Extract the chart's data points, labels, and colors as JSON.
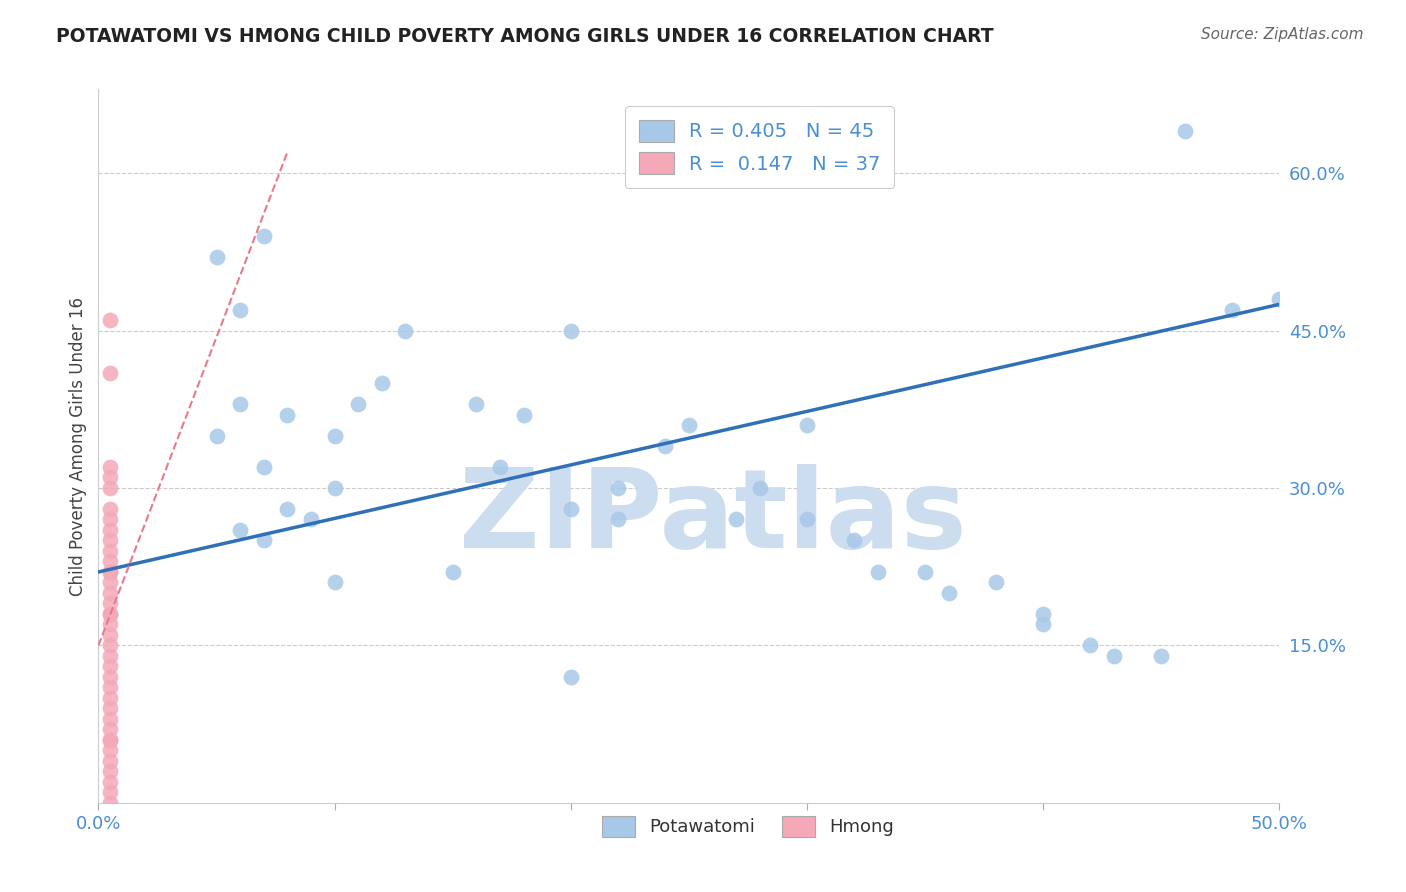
{
  "title": "POTAWATOMI VS HMONG CHILD POVERTY AMONG GIRLS UNDER 16 CORRELATION CHART",
  "source": "Source: ZipAtlas.com",
  "ylabel": "Child Poverty Among Girls Under 16",
  "xlim": [
    0.0,
    0.5
  ],
  "ylim": [
    0.0,
    0.68
  ],
  "xticks": [
    0.0,
    0.1,
    0.2,
    0.3,
    0.4,
    0.5
  ],
  "xticklabels": [
    "0.0%",
    "",
    "",
    "",
    "",
    "50.0%"
  ],
  "right_yticks": [
    0.15,
    0.3,
    0.45,
    0.6
  ],
  "right_yticklabels": [
    "15.0%",
    "30.0%",
    "45.0%",
    "60.0%"
  ],
  "grid_yticks": [
    0.15,
    0.3,
    0.45,
    0.6
  ],
  "R_blue": 0.405,
  "N_blue": 45,
  "R_pink": 0.147,
  "N_pink": 37,
  "blue_color": "#a8c8e8",
  "pink_color": "#f4a8b8",
  "trendline_blue_color": "#3070b8",
  "trendline_pink_color": "#e87a8a",
  "watermark": "ZIPatlas",
  "watermark_color": "#ccddf0",
  "blue_trendline_x0": 0.0,
  "blue_trendline_y0": 0.22,
  "blue_trendline_x1": 0.5,
  "blue_trendline_y1": 0.475,
  "pink_trendline_x0": 0.0,
  "pink_trendline_y0": 0.15,
  "pink_trendline_x1": 0.08,
  "pink_trendline_y1": 0.62,
  "potawatomi_x": [
    0.05,
    0.06,
    0.07,
    0.06,
    0.05,
    0.07,
    0.08,
    0.06,
    0.07,
    0.08,
    0.09,
    0.1,
    0.11,
    0.12,
    0.1,
    0.13,
    0.15,
    0.16,
    0.17,
    0.18,
    0.2,
    0.2,
    0.22,
    0.22,
    0.24,
    0.25,
    0.27,
    0.3,
    0.3,
    0.32,
    0.33,
    0.35,
    0.36,
    0.38,
    0.4,
    0.4,
    0.42,
    0.43,
    0.45,
    0.46,
    0.48,
    0.5,
    0.28,
    0.1,
    0.2
  ],
  "potawatomi_y": [
    0.52,
    0.47,
    0.54,
    0.38,
    0.35,
    0.32,
    0.28,
    0.26,
    0.25,
    0.37,
    0.27,
    0.35,
    0.38,
    0.4,
    0.3,
    0.45,
    0.22,
    0.38,
    0.32,
    0.37,
    0.45,
    0.28,
    0.3,
    0.27,
    0.34,
    0.36,
    0.27,
    0.27,
    0.36,
    0.25,
    0.22,
    0.22,
    0.2,
    0.21,
    0.18,
    0.17,
    0.15,
    0.14,
    0.14,
    0.64,
    0.47,
    0.48,
    0.3,
    0.21,
    0.12
  ],
  "hmong_x": [
    0.005,
    0.005,
    0.005,
    0.005,
    0.005,
    0.005,
    0.005,
    0.005,
    0.005,
    0.005,
    0.005,
    0.005,
    0.005,
    0.005,
    0.005,
    0.005,
    0.005,
    0.005,
    0.005,
    0.005,
    0.005,
    0.005,
    0.005,
    0.005,
    0.005,
    0.005,
    0.005,
    0.005,
    0.005,
    0.005,
    0.005,
    0.005,
    0.005,
    0.005,
    0.005,
    0.005,
    0.005
  ],
  "hmong_y": [
    0.46,
    0.41,
    0.32,
    0.31,
    0.3,
    0.28,
    0.26,
    0.25,
    0.24,
    0.23,
    0.22,
    0.21,
    0.2,
    0.19,
    0.18,
    0.17,
    0.16,
    0.15,
    0.14,
    0.13,
    0.12,
    0.11,
    0.1,
    0.09,
    0.08,
    0.07,
    0.06,
    0.05,
    0.04,
    0.03,
    0.02,
    0.01,
    0.27,
    0.22,
    0.18,
    0.06,
    0.0
  ]
}
